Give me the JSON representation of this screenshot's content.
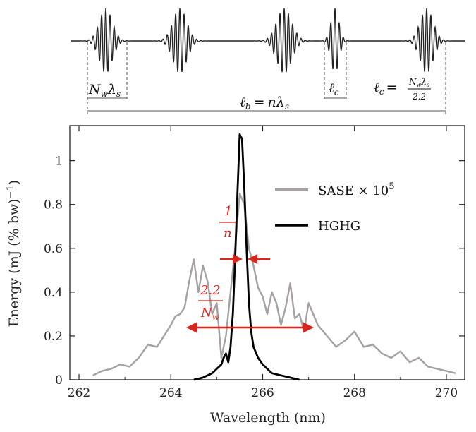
{
  "chart_data": {
    "type": "line",
    "title": "",
    "xlabel": "Wavelength (nm)",
    "ylabel": "Energy (mJ (% bw)",
    "ylabel_sup": "−1",
    "ylabel_close": ")",
    "xlim": [
      261.8,
      270.4
    ],
    "ylim": [
      0,
      1.16
    ],
    "x_ticks": [
      262,
      264,
      266,
      268,
      270
    ],
    "x_tick_labels": [
      "262",
      "264",
      "266",
      "268",
      "270"
    ],
    "y_ticks": [
      0,
      0.2,
      0.4,
      0.6,
      0.8,
      1.0
    ],
    "y_tick_labels": [
      "0",
      "0.2",
      "0.4",
      "0.6",
      "0.8",
      "1"
    ],
    "legend_position": "top-right",
    "series": [
      {
        "name": "SASE × 10",
        "name_sup": "5",
        "color": "#a6a0a0",
        "x": [
          262.3,
          262.5,
          262.7,
          262.9,
          263.1,
          263.3,
          263.5,
          263.7,
          263.85,
          264.0,
          264.1,
          264.2,
          264.3,
          264.4,
          264.5,
          264.6,
          264.7,
          264.8,
          264.9,
          265.0,
          265.1,
          265.2,
          265.3,
          265.4,
          265.5,
          265.6,
          265.7,
          265.8,
          265.9,
          266.0,
          266.1,
          266.2,
          266.3,
          266.4,
          266.5,
          266.6,
          266.7,
          266.8,
          266.9,
          267.0,
          267.2,
          267.4,
          267.6,
          267.8,
          268.0,
          268.2,
          268.4,
          268.6,
          268.8,
          269.0,
          269.2,
          269.4,
          269.6,
          269.8,
          270.0,
          270.2
        ],
        "y": [
          0.02,
          0.04,
          0.05,
          0.07,
          0.06,
          0.1,
          0.16,
          0.15,
          0.2,
          0.25,
          0.29,
          0.3,
          0.33,
          0.45,
          0.55,
          0.4,
          0.52,
          0.45,
          0.3,
          0.35,
          0.1,
          0.2,
          0.4,
          0.6,
          0.85,
          0.8,
          0.6,
          0.52,
          0.42,
          0.38,
          0.3,
          0.4,
          0.35,
          0.25,
          0.33,
          0.44,
          0.28,
          0.3,
          0.22,
          0.35,
          0.25,
          0.2,
          0.15,
          0.18,
          0.22,
          0.15,
          0.16,
          0.12,
          0.1,
          0.13,
          0.08,
          0.1,
          0.06,
          0.05,
          0.04,
          0.03
        ]
      },
      {
        "name": "HGHG",
        "color": "#000000",
        "x": [
          264.5,
          264.7,
          264.9,
          265.0,
          265.1,
          265.15,
          265.2,
          265.25,
          265.3,
          265.35,
          265.4,
          265.45,
          265.5,
          265.55,
          265.6,
          265.65,
          265.7,
          265.75,
          265.8,
          265.9,
          266.0,
          266.1,
          266.2,
          266.4,
          266.6,
          266.8
        ],
        "y": [
          0.0,
          0.01,
          0.03,
          0.05,
          0.07,
          0.1,
          0.12,
          0.08,
          0.15,
          0.3,
          0.55,
          0.85,
          1.12,
          1.1,
          0.88,
          0.6,
          0.35,
          0.22,
          0.15,
          0.1,
          0.07,
          0.05,
          0.03,
          0.02,
          0.01,
          0.0
        ]
      }
    ],
    "annotations": [
      {
        "label": "1",
        "denominator": "n"
      },
      {
        "label": "2.2",
        "denominator": "N",
        "denominator_sub": "w"
      }
    ]
  },
  "schematic": {
    "labels": {
      "n_w": "N",
      "n_w_sub": "w",
      "lambda": "λ",
      "lambda_sub": "s",
      "l": "ℓ",
      "l_b_sub": "b",
      "eq": "=",
      "n": "n",
      "l_c_sub": "c",
      "two_two": "2.2"
    }
  }
}
